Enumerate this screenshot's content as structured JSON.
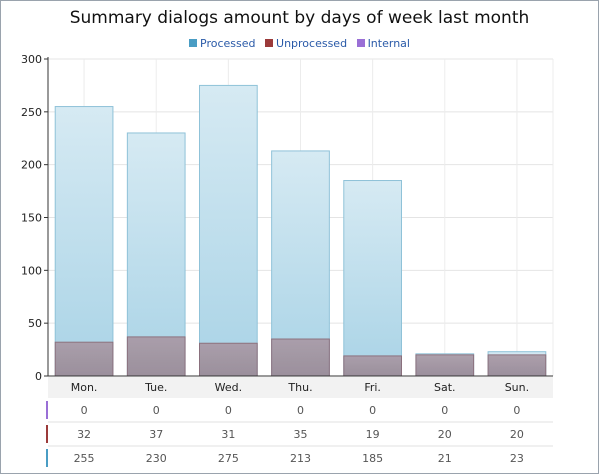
{
  "chart_data": {
    "type": "bar",
    "title": "Summary dialogs amount by days of week last month",
    "categories": [
      "Mon.",
      "Tue.",
      "Wed.",
      "Thu.",
      "Fri.",
      "Sat.",
      "Sun."
    ],
    "series": [
      {
        "name": "Processed",
        "color": "#4a9dc4",
        "values": [
          255,
          230,
          275,
          213,
          185,
          21,
          23
        ]
      },
      {
        "name": "Unprocessed",
        "color": "#9b3a3a",
        "values": [
          32,
          37,
          31,
          35,
          19,
          20,
          20
        ]
      },
      {
        "name": "Internal",
        "color": "#9a6fd6",
        "values": [
          0,
          0,
          0,
          0,
          0,
          0,
          0
        ]
      }
    ],
    "data_table_rows": [
      "Internal",
      "Unprocessed",
      "Processed"
    ],
    "ylim": [
      0,
      300
    ],
    "yticks": [
      0,
      50,
      100,
      150,
      200,
      250,
      300
    ],
    "xlabel": "",
    "ylabel": "",
    "legend_position": "top-center",
    "grid": true
  }
}
